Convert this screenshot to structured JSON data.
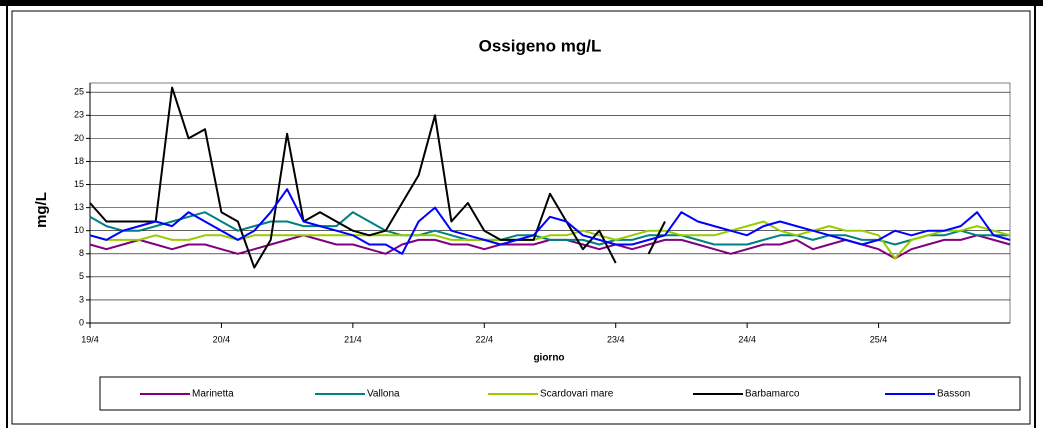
{
  "chart_data": {
    "type": "line",
    "title": "Ossigeno mg/L",
    "x_label": "giorno",
    "y_label": "mg/L",
    "xlim": [
      0,
      7
    ],
    "xticks": [
      {
        "value": 0,
        "label": "19/4"
      },
      {
        "value": 1,
        "label": "20/4"
      },
      {
        "value": 2,
        "label": "21/4"
      },
      {
        "value": 3,
        "label": "22/4"
      },
      {
        "value": 4,
        "label": "23/4"
      },
      {
        "value": 5,
        "label": "24/4"
      },
      {
        "value": 6,
        "label": "25/4"
      }
    ],
    "ylim": [
      0,
      26
    ],
    "yticks": [
      0,
      {
        "value": 2.5,
        "label": "3"
      },
      5,
      {
        "value": 7.5,
        "label": "8"
      },
      10,
      {
        "value": 12.5,
        "label": "13"
      },
      15,
      {
        "value": 17.5,
        "label": "18"
      },
      20,
      {
        "value": 22.5,
        "label": "23"
      },
      25
    ],
    "grid": true,
    "legend": "bottom",
    "x": [
      0,
      0.125,
      0.25,
      0.375,
      0.5,
      0.625,
      0.75,
      0.875,
      1,
      1.125,
      1.25,
      1.375,
      1.5,
      1.625,
      1.75,
      1.875,
      2,
      2.125,
      2.25,
      2.375,
      2.5,
      2.625,
      2.75,
      2.875,
      3,
      3.125,
      3.25,
      3.375,
      3.5,
      3.625,
      3.75,
      3.875,
      4,
      4.125,
      4.25,
      4.375,
      4.5,
      4.625,
      4.75,
      4.875,
      5,
      5.125,
      5.25,
      5.375,
      5.5,
      5.625,
      5.75,
      5.875,
      6,
      6.125,
      6.25,
      6.375,
      6.5,
      6.625,
      6.75,
      6.875,
      7
    ],
    "series": [
      {
        "name": "Marinetta",
        "color": "#800080",
        "values": [
          8.5,
          8,
          8.5,
          9,
          8.5,
          8,
          8.5,
          8.5,
          8,
          7.5,
          8,
          8.5,
          9,
          9.5,
          9,
          8.5,
          8.5,
          8,
          7.5,
          8.5,
          9,
          9,
          8.5,
          8.5,
          8,
          8.5,
          8.5,
          8.5,
          9,
          9,
          8.5,
          8,
          8.5,
          8,
          8.5,
          9,
          9,
          8.5,
          8,
          7.5,
          8,
          8.5,
          8.5,
          9,
          8,
          8.5,
          9,
          8.5,
          8,
          7,
          8,
          8.5,
          9,
          9,
          9.5,
          9,
          8.5
        ]
      },
      {
        "name": "Vallona",
        "color": "#008080",
        "values": [
          11.5,
          10.5,
          10,
          10,
          10.5,
          11,
          11.5,
          12,
          11,
          10,
          10.5,
          11,
          11,
          10.5,
          10.5,
          10.5,
          12,
          11,
          10,
          9.5,
          9.5,
          10,
          9.5,
          9,
          9,
          9,
          9.5,
          9.5,
          9,
          9,
          9,
          8.5,
          9,
          9,
          9.5,
          9.5,
          9.5,
          9,
          8.5,
          8.5,
          8.5,
          9,
          9.5,
          9.5,
          9,
          9.5,
          9.5,
          9,
          9,
          8.5,
          9,
          9.5,
          9.5,
          10,
          9.5,
          9.5,
          9.5
        ]
      },
      {
        "name": "Scardovari mare",
        "color": "#99cc00",
        "values": [
          9.5,
          9,
          9,
          9,
          9.5,
          9,
          9,
          9.5,
          9.5,
          9,
          9.5,
          9.5,
          9.5,
          9.5,
          9.5,
          9.5,
          9.5,
          9.5,
          9.5,
          9.5,
          9.5,
          9.5,
          9,
          9,
          9,
          9,
          9,
          9,
          9.5,
          9.5,
          10,
          9.5,
          9,
          9.5,
          10,
          10,
          9.5,
          9.5,
          9.5,
          10,
          10.5,
          11,
          10,
          9.5,
          10,
          10.5,
          10,
          10,
          9.5,
          7,
          9,
          9.5,
          10,
          10,
          10.5,
          10,
          9.5
        ]
      },
      {
        "name": "Barbamarco",
        "color": "#000000",
        "values": [
          13,
          11,
          11,
          11,
          11,
          25.5,
          20,
          21,
          12,
          11,
          6,
          9,
          20.5,
          11,
          12,
          11,
          10,
          9.5,
          10,
          13,
          16,
          22.5,
          11,
          13,
          10,
          9,
          9,
          9,
          14,
          11,
          8,
          10,
          6.5,
          null,
          7.5,
          11,
          null,
          null,
          null,
          null,
          null,
          null,
          null,
          null,
          null,
          null,
          null,
          null,
          null,
          null,
          null,
          null,
          null,
          null,
          null,
          null,
          null
        ]
      },
      {
        "name": "Basson",
        "color": "#0000ff",
        "values": [
          9.5,
          9,
          10,
          10.5,
          11,
          10.5,
          12,
          11,
          10,
          9,
          10,
          12,
          14.5,
          11,
          10.5,
          10,
          9.5,
          8.5,
          8.5,
          7.5,
          11,
          12.5,
          10,
          9.5,
          9,
          8.5,
          9,
          9.5,
          11.5,
          11,
          9.5,
          9,
          8.5,
          8.5,
          9,
          9.5,
          12,
          11,
          10.5,
          10,
          9.5,
          10.5,
          11,
          10.5,
          10,
          9.5,
          9,
          8.5,
          9,
          10,
          9.5,
          10,
          10,
          10.5,
          12,
          9.5,
          9
        ]
      }
    ]
  }
}
